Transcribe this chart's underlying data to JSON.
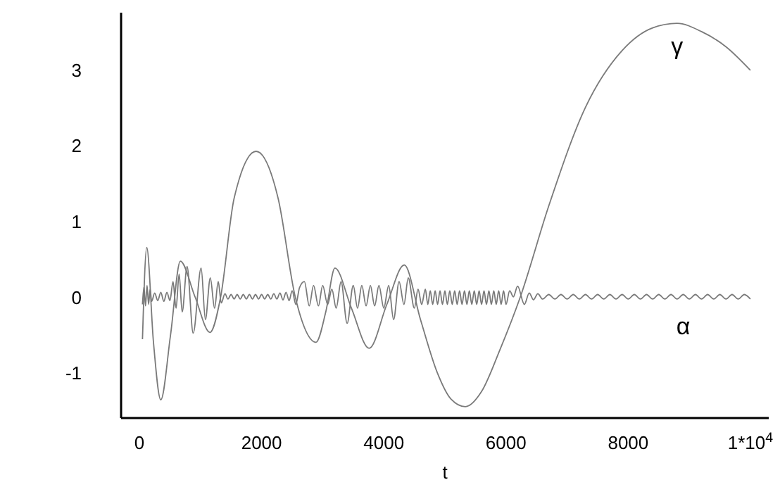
{
  "chart_data": {
    "type": "line",
    "xlabel": "t",
    "xlim": [
      -300,
      10300
    ],
    "ylim": [
      -1.6,
      3.75
    ],
    "xticks": [
      0,
      2000,
      4000,
      6000,
      8000,
      {
        "value": 10000,
        "label": "1*10$^{4}$"
      }
    ],
    "yticks": [
      -1,
      0,
      1,
      2,
      3
    ],
    "marker": "none",
    "line_style": "solid",
    "series": [
      {
        "name": "γ",
        "color": "#7a7a7a",
        "x": [
          50,
          120,
          230,
          350,
          510,
          670,
          910,
          1155,
          1330,
          1550,
          1910,
          2270,
          2550,
          2890,
          3050,
          3200,
          3470,
          3760,
          4050,
          4335,
          4600,
          4870,
          5100,
          5335,
          5600,
          5900,
          6235,
          6700,
          7300,
          7900,
          8400,
          8800,
          9200,
          9600,
          10000
        ],
        "values": [
          -0.56,
          0.65,
          -0.6,
          -1.36,
          -0.5,
          0.47,
          0.0,
          -0.47,
          0.0,
          1.3,
          1.92,
          1.3,
          0.0,
          -0.6,
          -0.2,
          0.38,
          -0.15,
          -0.68,
          -0.1,
          0.42,
          -0.3,
          -0.99,
          -1.35,
          -1.45,
          -1.25,
          -0.7,
          0.0,
          1.2,
          2.5,
          3.25,
          3.55,
          3.61,
          3.5,
          3.3,
          2.99
        ]
      },
      {
        "name": "α",
        "color": "#7a7a7a",
        "x": [
          50,
          75,
          100,
          125,
          150,
          175,
          200,
          250,
          300,
          350,
          400,
          450,
          500,
          550,
          600,
          650,
          700,
          780,
          880,
          1010,
          1080,
          1160,
          1230,
          1290,
          1340,
          1400,
          1450,
          1500,
          1550,
          1600,
          1650,
          1700,
          1750,
          1800,
          1850,
          1900,
          1950,
          2000,
          2050,
          2100,
          2150,
          2200,
          2250,
          2300,
          2350,
          2400,
          2450,
          2500,
          2560,
          2620,
          2700,
          2780,
          2850,
          2930,
          3000,
          3080,
          3150,
          3220,
          3300,
          3400,
          3500,
          3570,
          3640,
          3710,
          3780,
          3850,
          3920,
          4000,
          4080,
          4160,
          4250,
          4330,
          4400,
          4500,
          4560,
          4620,
          4680,
          4720,
          4760,
          4800,
          4840,
          4880,
          4920,
          4960,
          5000,
          5040,
          5080,
          5120,
          5160,
          5200,
          5240,
          5280,
          5320,
          5360,
          5400,
          5440,
          5480,
          5520,
          5560,
          5600,
          5640,
          5680,
          5720,
          5760,
          5800,
          5840,
          5880,
          5920,
          5960,
          6000,
          6060,
          6120,
          6190,
          6300,
          6380,
          6450,
          6520,
          6600,
          6700,
          6800,
          6900,
          7000,
          7100,
          7200,
          7300,
          7400,
          7500,
          7600,
          7700,
          7800,
          7900,
          8000,
          8100,
          8200,
          8300,
          8400,
          8500,
          8600,
          8700,
          8800,
          8900,
          9000,
          9100,
          9200,
          9300,
          9400,
          9500,
          9600,
          9700,
          9800,
          9900,
          10000
        ],
        "values": [
          -0.1,
          0.13,
          -0.12,
          0.15,
          -0.1,
          0.1,
          -0.06,
          0.05,
          -0.05,
          0.06,
          -0.06,
          0.06,
          -0.05,
          0.2,
          -0.15,
          0.3,
          -0.2,
          0.4,
          -0.48,
          0.38,
          -0.3,
          0.25,
          -0.15,
          0.2,
          -0.08,
          0.04,
          -0.03,
          0.03,
          -0.03,
          0.03,
          -0.03,
          0.03,
          -0.03,
          0.03,
          -0.03,
          0.03,
          -0.03,
          0.03,
          -0.03,
          0.03,
          -0.03,
          0.04,
          -0.03,
          0.05,
          -0.04,
          0.06,
          -0.05,
          0.08,
          -0.1,
          0.12,
          0.2,
          -0.12,
          0.15,
          -0.12,
          0.15,
          -0.1,
          0.1,
          -0.15,
          0.2,
          -0.35,
          0.15,
          -0.15,
          0.15,
          -0.12,
          0.15,
          -0.12,
          0.15,
          -0.15,
          0.15,
          -0.3,
          0.2,
          -0.1,
          0.25,
          -0.15,
          0.1,
          -0.1,
          0.1,
          -0.1,
          0.08,
          -0.1,
          0.08,
          -0.1,
          0.08,
          -0.1,
          0.08,
          -0.1,
          0.08,
          -0.1,
          0.08,
          -0.1,
          0.08,
          -0.1,
          0.08,
          -0.1,
          0.08,
          -0.1,
          0.08,
          -0.1,
          0.08,
          -0.1,
          0.08,
          -0.1,
          0.08,
          -0.1,
          0.08,
          -0.1,
          0.08,
          -0.1,
          0.08,
          -0.1,
          0.08,
          0.0,
          0.14,
          -0.1,
          0.05,
          -0.04,
          0.04,
          -0.03,
          0.03,
          -0.03,
          0.03,
          -0.03,
          0.03,
          -0.03,
          0.03,
          -0.03,
          0.03,
          -0.03,
          0.03,
          -0.03,
          0.03,
          -0.03,
          0.03,
          -0.03,
          0.03,
          -0.03,
          0.03,
          -0.03,
          0.03,
          -0.03,
          0.03,
          -0.03,
          0.03,
          -0.03,
          0.03,
          -0.03,
          0.03,
          -0.03,
          0.03,
          -0.03,
          0.03,
          -0.03
        ]
      }
    ]
  }
}
